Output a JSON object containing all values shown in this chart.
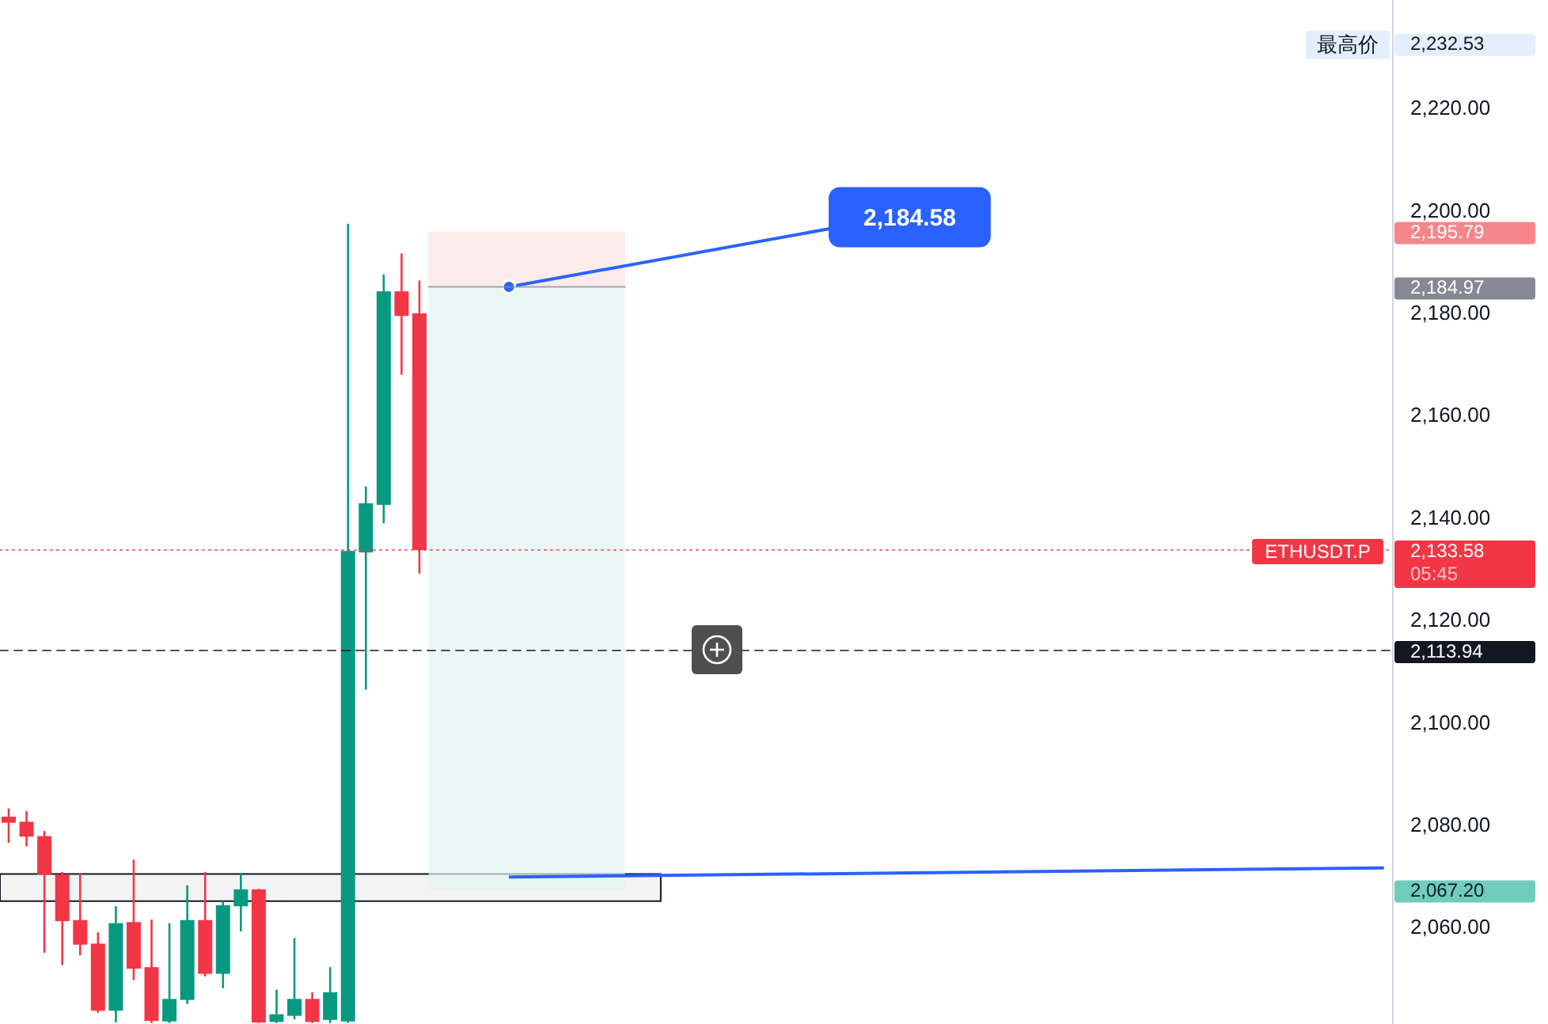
{
  "chart_data": {
    "type": "candlestick",
    "categories": [
      null,
      null,
      null,
      null,
      null,
      null,
      null,
      null,
      null,
      null,
      null,
      null,
      null,
      null,
      null,
      null,
      null,
      null,
      null,
      null,
      null,
      null,
      null,
      null,
      null,
      null,
      null,
      null,
      null,
      null,
      null,
      null,
      null,
      null,
      null,
      null,
      null,
      null,
      null,
      null,
      null,
      null,
      null,
      null,
      null,
      null,
      null,
      null,
      null,
      null,
      null,
      null,
      null,
      null,
      null,
      null,
      null,
      null,
      null,
      null,
      null,
      null,
      null,
      null,
      null,
      null,
      null,
      null,
      null,
      null,
      null,
      null,
      null,
      null,
      null,
      null,
      null,
      null
    ],
    "ohlc": [
      [
        2081.5,
        2083.1,
        2076.4,
        2080.3
      ],
      [
        2080.5,
        2082.6,
        2075.7,
        2077.6
      ],
      [
        2077.7,
        2078.7,
        2054.9,
        2070.2
      ],
      [
        2070.2,
        2070.7,
        2052.5,
        2061.1
      ],
      [
        2061.3,
        2070.4,
        2054.4,
        2056.5
      ],
      [
        2056.7,
        2058.9,
        2043.2,
        2043.6
      ],
      [
        2043.6,
        2064.0,
        2041.3,
        2060.7
      ],
      [
        2060.9,
        2073.1,
        2049.6,
        2051.8
      ],
      [
        2052.1,
        2061.4,
        2041.2,
        2041.6
      ],
      [
        2041.5,
        2060.7,
        2041.2,
        2045.9
      ],
      [
        2045.7,
        2068.1,
        2044.9,
        2061.3
      ],
      [
        2061.3,
        2070.7,
        2050.3,
        2050.8
      ],
      [
        2050.8,
        2065.0,
        2048.0,
        2064.2
      ],
      [
        2064.0,
        2070.4,
        2059.1,
        2067.3
      ],
      [
        2067.3,
        2067.4,
        2041.2,
        2041.3
      ],
      [
        2041.4,
        2047.7,
        2041.2,
        2042.9
      ],
      [
        2042.6,
        2057.8,
        2041.9,
        2045.9
      ],
      [
        2045.9,
        2047.2,
        2041.2,
        2041.4
      ],
      [
        2041.8,
        2052.1,
        2041.2,
        2047.2
      ],
      [
        2041.5,
        2197.3,
        2041.2,
        2133.4
      ],
      [
        2133.1,
        2146.0,
        2106.3,
        2142.7
      ],
      [
        2142.4,
        2187.4,
        2138.8,
        2184.1
      ],
      [
        2184.1,
        2191.5,
        2167.8,
        2179.3
      ],
      [
        2179.8,
        2186.2,
        2129.0,
        2133.58
      ],
      null,
      null,
      null,
      null,
      null,
      null,
      null,
      null,
      null,
      null,
      null,
      null,
      null,
      null,
      null,
      null,
      null,
      null,
      null,
      null,
      null,
      null,
      null,
      null,
      null,
      null,
      null,
      null,
      null,
      null,
      null,
      null,
      null,
      null,
      null,
      null,
      null,
      null,
      null,
      null,
      null,
      null,
      null,
      null,
      null,
      null,
      null,
      null,
      null,
      null,
      null,
      null,
      null,
      null
    ],
    "colors": [
      "#f23645",
      "#f23645",
      "#f23645",
      "#f23645",
      "#f23645",
      "#f23645",
      "#089981",
      "#f23645",
      "#f23645",
      "#089981",
      "#089981",
      "#f23645",
      "#089981",
      "#089981",
      "#f23645",
      "#089981",
      "#089981",
      "#f23645",
      "#089981",
      "#089981",
      "#089981",
      "#089981",
      "#f23645",
      "#f23645",
      null,
      null,
      null,
      null,
      null,
      null,
      null,
      null,
      null,
      null,
      null,
      null,
      null,
      null,
      null,
      null,
      null,
      null,
      null,
      null,
      null,
      null,
      null,
      null,
      null,
      null,
      null,
      null,
      null,
      null,
      null,
      null,
      null,
      null,
      null,
      null,
      null,
      null,
      null,
      null,
      null,
      null,
      null,
      null,
      null,
      null,
      null,
      null,
      null,
      null,
      null,
      null,
      null,
      null
    ],
    "series": [
      {
        "type": "line",
        "color": "#2962ff",
        "values": [
          null,
          null,
          null,
          null,
          null,
          null,
          null,
          null,
          null,
          null,
          null,
          null,
          null,
          null,
          null,
          null,
          null,
          null,
          null,
          null,
          null,
          null,
          null,
          null,
          null,
          null,
          null,
          null,
          2069.7,
          null,
          null,
          null,
          null,
          null,
          null,
          null,
          null,
          null,
          null,
          null,
          null,
          null,
          null,
          null,
          null,
          null,
          null,
          null,
          null,
          null,
          null,
          null,
          null,
          null,
          null,
          null,
          null,
          null,
          null,
          null,
          null,
          null,
          null,
          null,
          null,
          null,
          null,
          null,
          null,
          null,
          null,
          null,
          null,
          null,
          null,
          null,
          null,
          2071.5
        ]
      }
    ],
    "ylim": [
      2041,
      2241
    ],
    "yticks": [
      {
        "value": 2060,
        "label": "2,060.00"
      },
      {
        "value": 2080,
        "label": "2,080.00"
      },
      {
        "value": 2100,
        "label": "2,100.00"
      },
      {
        "value": 2120,
        "label": "2,120.00"
      },
      {
        "value": 2140,
        "label": "2,140.00"
      },
      {
        "value": 2160,
        "label": "2,160.00"
      },
      {
        "value": 2180,
        "label": "2,180.00"
      },
      {
        "value": 2200,
        "label": "2,200.00"
      },
      {
        "value": 2220,
        "label": "2,220.00"
      }
    ],
    "tick_labels": "y",
    "ref_lines": [
      {
        "axis": "y",
        "value": 2184.97,
        "color": "#868993",
        "line_style": "solid"
      },
      {
        "axis": "y",
        "value": 2133.58,
        "label": "2,133.58",
        "color": "#f23645",
        "line_style": "dotted"
      },
      {
        "axis": "y",
        "value": 2113.94,
        "label": "2,113.94",
        "color": "#131722",
        "line_style": "dashed"
      }
    ],
    "bands": [
      {
        "axis": "y",
        "from": 2065.0,
        "to": 2070.3,
        "color": "#eeeeee"
      },
      {
        "axis": "y",
        "from": 2184.97,
        "to": 2195.79,
        "color": "#fbe2e2"
      },
      {
        "axis": "y",
        "from": 2067.2,
        "to": 2184.97,
        "color": "#e1f3f0"
      }
    ],
    "annotations": [
      "最高价",
      "2,232.53",
      "2,195.79",
      "2,184.97",
      "2,184.58",
      "ETHUSDT.P",
      "05:45",
      "2,067.20"
    ]
  }
}
